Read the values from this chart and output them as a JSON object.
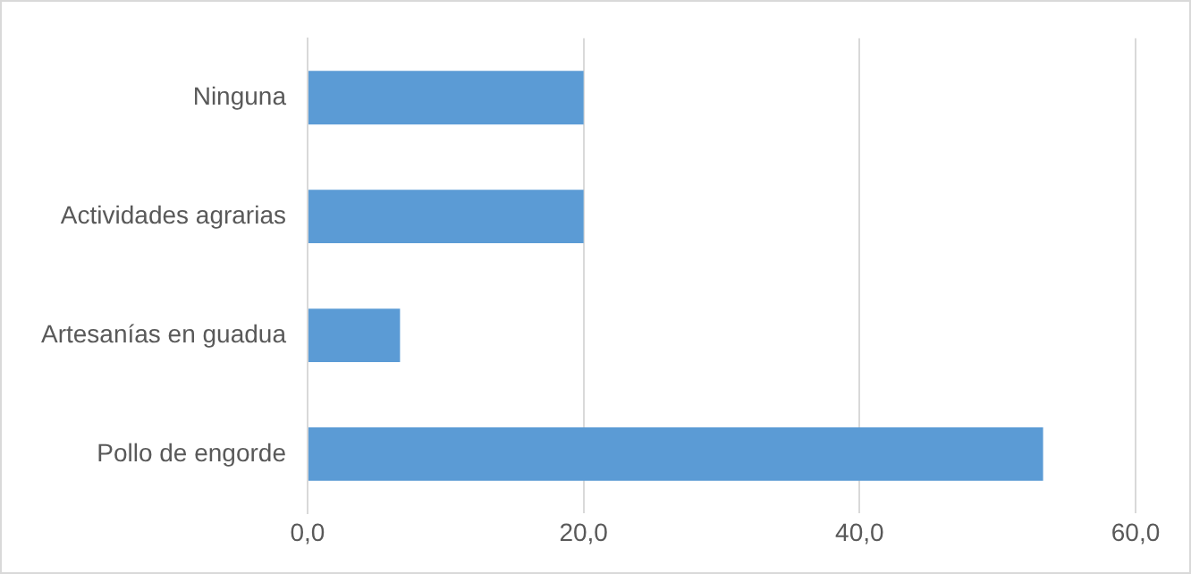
{
  "chart_data": {
    "type": "bar",
    "orientation": "horizontal",
    "categories": [
      "Ninguna",
      "Actividades agrarias",
      "Artesanías en guadua",
      "Pollo de engorde"
    ],
    "values": [
      20.0,
      20.0,
      6.7,
      53.3
    ],
    "color": "#5b9bd5",
    "xlim": [
      0,
      60
    ],
    "xticks": [
      {
        "value": 0,
        "label": "0,0"
      },
      {
        "value": 20,
        "label": "20,0"
      },
      {
        "value": 40,
        "label": "40,0"
      },
      {
        "value": 60,
        "label": "60,0"
      }
    ],
    "grid": "x",
    "legend": false
  }
}
